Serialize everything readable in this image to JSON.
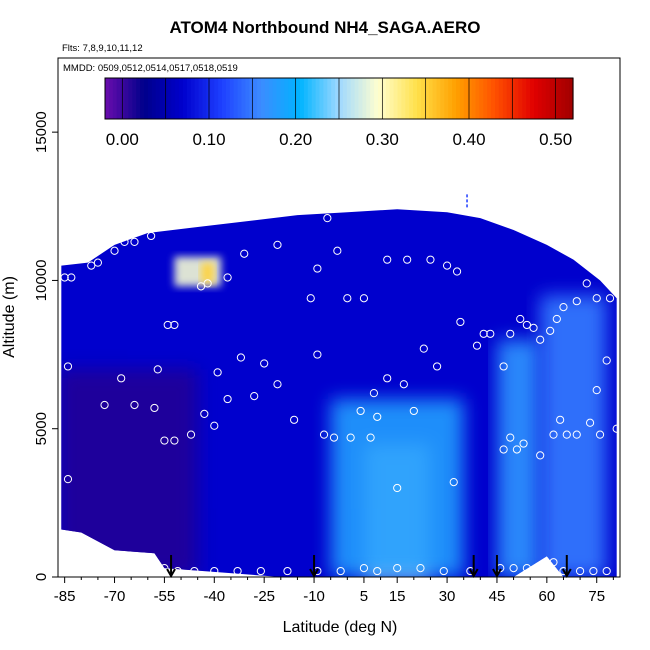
{
  "chart_data": {
    "type": "heatmap",
    "title": "ATOM4 Northbound NH4_SAGA.AERO",
    "subtitle_flights": "Flts: 7,8,9,10,11,12",
    "subtitle_dates": "MMDD: 0509,0512,0514,0517,0518,0519",
    "xlabel": "Latitude (deg N)",
    "ylabel": "Altitude (m)",
    "xlim": [
      -87,
      82
    ],
    "ylim": [
      0,
      17500
    ],
    "x_ticks": [
      -85,
      -70,
      -55,
      -40,
      -25,
      -10,
      5,
      15,
      30,
      45,
      60,
      75
    ],
    "x_tick_labels": [
      "-85",
      "-70",
      "-55",
      "-40",
      "-25",
      "-10",
      "5",
      "15",
      "30",
      "45",
      "60",
      "75"
    ],
    "y_ticks": [
      0,
      5000,
      10000,
      15000
    ],
    "y_tick_labels": [
      "0",
      "5000",
      "10000",
      "15000"
    ],
    "colorbar": {
      "range": [
        -0.02,
        0.52
      ],
      "ticks": [
        0.0,
        0.1,
        0.2,
        0.3,
        0.4,
        0.5
      ],
      "tick_labels": [
        "0.00",
        "0.10",
        "0.20",
        "0.30",
        "0.40",
        "0.50"
      ],
      "colors": [
        "#6a0dad",
        "#00008b",
        "#0000cd",
        "#1e40ff",
        "#3c8cff",
        "#00b4ff",
        "#9fd8ff",
        "#ffffd0",
        "#ffe04a",
        "#ffa000",
        "#ff5000",
        "#e00000",
        "#a00000"
      ]
    },
    "field_regions": [
      {
        "name": "background",
        "value": 0.07
      },
      {
        "name": "south-low-purple",
        "lat": [
          -87,
          -45
        ],
        "alt": [
          0,
          7000
        ],
        "value": 0.01
      },
      {
        "name": "tropical-plume",
        "lat": [
          5,
          25
        ],
        "alt": [
          0,
          4500
        ],
        "value": 0.27
      },
      {
        "name": "tropical-plume-wide",
        "lat": [
          -5,
          35
        ],
        "alt": [
          0,
          6000
        ],
        "value": 0.18
      },
      {
        "name": "mid-lat-band",
        "lat": [
          45,
          58
        ],
        "alt": [
          0,
          8000
        ],
        "value": 0.17
      },
      {
        "name": "north-band",
        "lat": [
          58,
          78
        ],
        "alt": [
          0,
          9500
        ],
        "value": 0.15
      },
      {
        "name": "upper-south-streak",
        "lat": [
          -52,
          -38
        ],
        "alt": [
          9800,
          10800
        ],
        "value": 0.29
      },
      {
        "name": "upper-south-core",
        "lat": [
          -44,
          -40
        ],
        "alt": [
          9900,
          10600
        ],
        "value": 0.35
      }
    ],
    "sample_points": [
      {
        "x": -85,
        "y": 10100
      },
      {
        "x": -83,
        "y": 10100
      },
      {
        "x": -77,
        "y": 10500
      },
      {
        "x": -75,
        "y": 10600
      },
      {
        "x": -70,
        "y": 11000
      },
      {
        "x": -67,
        "y": 11300
      },
      {
        "x": -64,
        "y": 11300
      },
      {
        "x": -59,
        "y": 11500
      },
      {
        "x": -44,
        "y": 9800
      },
      {
        "x": -42,
        "y": 9900
      },
      {
        "x": -36,
        "y": 10100
      },
      {
        "x": -31,
        "y": 10900
      },
      {
        "x": -21,
        "y": 11200
      },
      {
        "x": -6,
        "y": 12100
      },
      {
        "x": -11,
        "y": 9400
      },
      {
        "x": -9,
        "y": 10400
      },
      {
        "x": -3,
        "y": 11000
      },
      {
        "x": 0,
        "y": 9400
      },
      {
        "x": 5,
        "y": 9400
      },
      {
        "x": 12,
        "y": 10700
      },
      {
        "x": 18,
        "y": 10700
      },
      {
        "x": 25,
        "y": 10700
      },
      {
        "x": 30,
        "y": 10500
      },
      {
        "x": 33,
        "y": 10300
      },
      {
        "x": -54,
        "y": 8500
      },
      {
        "x": -52,
        "y": 8500
      },
      {
        "x": -57,
        "y": 7000
      },
      {
        "x": -39,
        "y": 6900
      },
      {
        "x": -32,
        "y": 7400
      },
      {
        "x": -25,
        "y": 7200
      },
      {
        "x": -21,
        "y": 6500
      },
      {
        "x": -28,
        "y": 6100
      },
      {
        "x": -36,
        "y": 6000
      },
      {
        "x": -43,
        "y": 5500
      },
      {
        "x": -40,
        "y": 5100
      },
      {
        "x": -47,
        "y": 4800
      },
      {
        "x": -55,
        "y": 4600
      },
      {
        "x": -52,
        "y": 4600
      },
      {
        "x": -58,
        "y": 5700
      },
      {
        "x": -64,
        "y": 5800
      },
      {
        "x": -73,
        "y": 5800
      },
      {
        "x": -68,
        "y": 6700
      },
      {
        "x": -84,
        "y": 7100
      },
      {
        "x": -16,
        "y": 5300
      },
      {
        "x": -7,
        "y": 4800
      },
      {
        "x": -4,
        "y": 4700
      },
      {
        "x": 1,
        "y": 4700
      },
      {
        "x": 7,
        "y": 4700
      },
      {
        "x": 9,
        "y": 5400
      },
      {
        "x": 4,
        "y": 5600
      },
      {
        "x": 12,
        "y": 6700
      },
      {
        "x": 17,
        "y": 6500
      },
      {
        "x": 20,
        "y": 5600
      },
      {
        "x": 8,
        "y": 6200
      },
      {
        "x": -9,
        "y": 7500
      },
      {
        "x": 23,
        "y": 7700
      },
      {
        "x": 27,
        "y": 7100
      },
      {
        "x": 34,
        "y": 8600
      },
      {
        "x": 39,
        "y": 7800
      },
      {
        "x": 41,
        "y": 8200
      },
      {
        "x": 43,
        "y": 8200
      },
      {
        "x": 47,
        "y": 7100
      },
      {
        "x": 49,
        "y": 8200
      },
      {
        "x": 52,
        "y": 8700
      },
      {
        "x": 54,
        "y": 8500
      },
      {
        "x": 56,
        "y": 8400
      },
      {
        "x": 58,
        "y": 8000
      },
      {
        "x": 61,
        "y": 8300
      },
      {
        "x": 63,
        "y": 8700
      },
      {
        "x": 65,
        "y": 9100
      },
      {
        "x": 69,
        "y": 9300
      },
      {
        "x": 75,
        "y": 9400
      },
      {
        "x": 79,
        "y": 9400
      },
      {
        "x": 72,
        "y": 9900
      },
      {
        "x": 66,
        "y": 11000
      },
      {
        "x": 68,
        "y": 11200
      },
      {
        "x": 70,
        "y": 10900
      },
      {
        "x": 78,
        "y": 7300
      },
      {
        "x": 75,
        "y": 6300
      },
      {
        "x": 64,
        "y": 5300
      },
      {
        "x": 62,
        "y": 4800
      },
      {
        "x": 66,
        "y": 4800
      },
      {
        "x": 69,
        "y": 4800
      },
      {
        "x": 73,
        "y": 5200
      },
      {
        "x": 76,
        "y": 4800
      },
      {
        "x": 81,
        "y": 5000
      },
      {
        "x": 47,
        "y": 4300
      },
      {
        "x": 49,
        "y": 4700
      },
      {
        "x": 51,
        "y": 4300
      },
      {
        "x": 53,
        "y": 4500
      },
      {
        "x": 58,
        "y": 4100
      },
      {
        "x": 32,
        "y": 3200
      },
      {
        "x": 15,
        "y": 3000
      },
      {
        "x": -81,
        "y": 1300
      },
      {
        "x": -84,
        "y": 3300
      },
      {
        "x": -55,
        "y": 300
      },
      {
        "x": -51,
        "y": 200
      },
      {
        "x": -46,
        "y": 200
      },
      {
        "x": -40,
        "y": 200
      },
      {
        "x": -33,
        "y": 200
      },
      {
        "x": -26,
        "y": 200
      },
      {
        "x": -18,
        "y": 200
      },
      {
        "x": -9,
        "y": 200
      },
      {
        "x": -2,
        "y": 200
      },
      {
        "x": 5,
        "y": 300
      },
      {
        "x": 9,
        "y": 200
      },
      {
        "x": 15,
        "y": 300
      },
      {
        "x": 22,
        "y": 300
      },
      {
        "x": 29,
        "y": 200
      },
      {
        "x": 37,
        "y": 200
      },
      {
        "x": 46,
        "y": 300
      },
      {
        "x": 50,
        "y": 300
      },
      {
        "x": 54,
        "y": 300
      },
      {
        "x": 60,
        "y": 200
      },
      {
        "x": 62,
        "y": 500
      },
      {
        "x": 65,
        "y": 200
      },
      {
        "x": 70,
        "y": 200
      },
      {
        "x": 74,
        "y": 200
      },
      {
        "x": 78,
        "y": 200
      }
    ],
    "arrows_at_lat": [
      -53,
      -10,
      38,
      45,
      66
    ],
    "top_marker": {
      "lat": 36,
      "alt_range": [
        12400,
        12900
      ]
    }
  }
}
